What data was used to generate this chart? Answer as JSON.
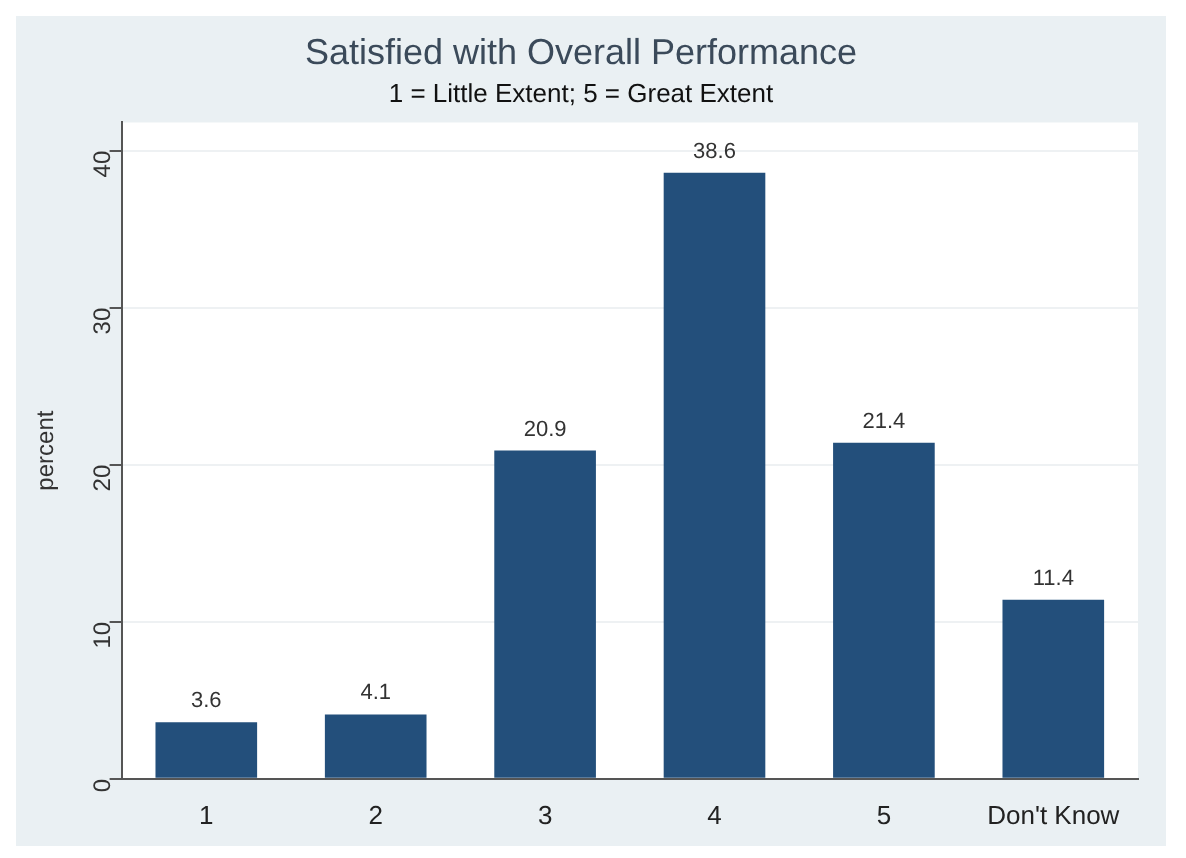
{
  "chart_data": {
    "type": "bar",
    "title": "Satisfied with Overall Performance",
    "subtitle": "1 = Little Extent; 5 = Great Extent",
    "ylabel": "percent",
    "categories": [
      "1",
      "2",
      "3",
      "4",
      "5",
      "Don't Know"
    ],
    "values": [
      3.6,
      4.1,
      20.9,
      38.6,
      21.4,
      11.4
    ],
    "color": "#234f7b",
    "ylim": [
      0,
      41.8
    ],
    "yticks": [
      0,
      10,
      20,
      30,
      40
    ],
    "grid": "y",
    "data_labels": true
  }
}
